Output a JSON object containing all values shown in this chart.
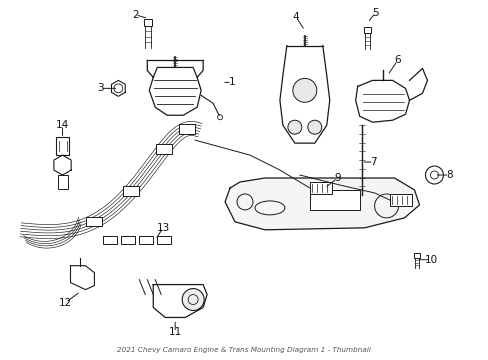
{
  "title": "2021 Chevy Camaro Engine & Trans Mounting Diagram 1 - Thumbnail",
  "bg_color": "#ffffff",
  "line_color": "#1a1a1a",
  "text_color": "#111111",
  "fig_width": 4.89,
  "fig_height": 3.6,
  "dpi": 100
}
